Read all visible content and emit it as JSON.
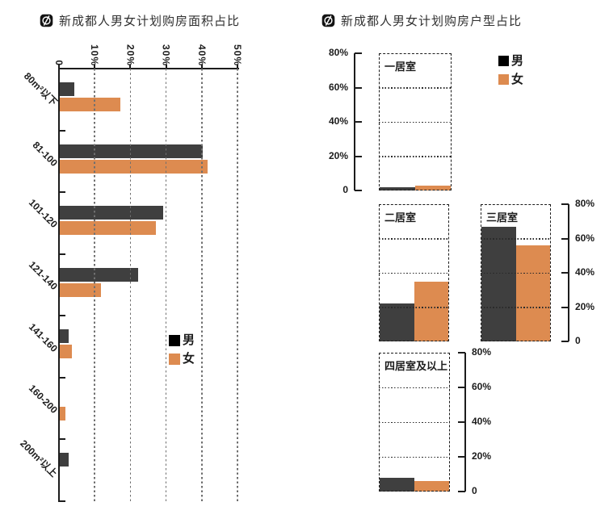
{
  "left_chart": {
    "title": "新成都人男女计划购房面积占比",
    "legend": {
      "male": "男",
      "female": "女"
    }
  },
  "right_chart": {
    "title": "新成都人男女计划购房户型占比",
    "legend": {
      "male": "男",
      "female": "女"
    }
  },
  "colors": {
    "male_bar": "#3f3f3f",
    "male_legend": "#000000",
    "female_bar": "#dd8b50",
    "grid_gray": "#6f6f6f",
    "axis": "#1c1c1c"
  },
  "chart_data": [
    {
      "type": "bar",
      "orientation": "horizontal",
      "title": "新成都人男女计划购房面积占比",
      "categories": [
        "80m²以下",
        "81-100",
        "101-120",
        "121-140",
        "141-160",
        "160-200",
        "200m²以上"
      ],
      "series": [
        {
          "name": "男",
          "values": [
            4,
            40,
            29,
            22,
            2.5,
            0,
            2.5
          ]
        },
        {
          "name": "女",
          "values": [
            17,
            41.5,
            27,
            11.5,
            3.5,
            1.5,
            0
          ]
        }
      ],
      "x_ticks": [
        "0",
        "10%",
        "20%",
        "30%",
        "40%",
        "50%"
      ],
      "xlim": [
        0,
        50
      ],
      "grid": "dashed-vertical",
      "legend_position": "inside-lower-right"
    },
    {
      "type": "bar",
      "title": "新成都人男女计划购房户型占比",
      "subplots": [
        {
          "label": "一居室",
          "male": 2,
          "female": 3
        },
        {
          "label": "二居室",
          "male": 22,
          "female": 35
        },
        {
          "label": "三居室",
          "male": 67,
          "female": 56
        },
        {
          "label": "四居室及以上",
          "male": 8,
          "female": 6
        }
      ],
      "series_names": [
        "男",
        "女"
      ],
      "y_ticks": [
        "80%",
        "60%",
        "40%",
        "20%",
        "0"
      ],
      "ylim": [
        0,
        80
      ],
      "grid": "dotted-horizontal",
      "legend_position": "top-right"
    }
  ]
}
